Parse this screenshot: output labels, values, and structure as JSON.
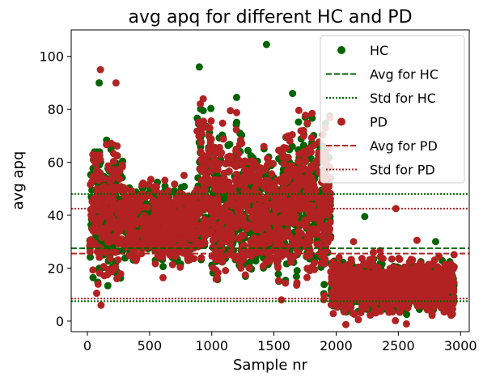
{
  "chart_data": {
    "type": "scatter",
    "title": "avg apq for different HC and PD",
    "xlabel": "Sample nr",
    "ylabel": "avg apq",
    "xlim": [
      -130,
      3070
    ],
    "ylim": [
      -4,
      110
    ],
    "x_ticks": [
      0,
      500,
      1000,
      1500,
      2000,
      2500,
      3000
    ],
    "y_ticks": [
      0,
      20,
      40,
      60,
      80,
      100
    ],
    "grid": false,
    "legend_placement": "top-right",
    "series": [
      {
        "name": "HC",
        "kind": "points",
        "color": "#006400"
      },
      {
        "name": "PD",
        "kind": "points",
        "color": "#b22222"
      }
    ],
    "reference_lines": [
      {
        "name": "Avg for HC",
        "value": 27.5,
        "style": "dashed",
        "color": "#006400"
      },
      {
        "name": "Std for HC",
        "values": [
          48.0,
          7.5
        ],
        "style": "dotted",
        "color": "#006400"
      },
      {
        "name": "Avg for PD",
        "value": 25.5,
        "style": "dashed",
        "color": "#b22222"
      },
      {
        "name": "Std for PD",
        "values": [
          42.5,
          8.5
        ],
        "style": "dotted",
        "color": "#b22222"
      }
    ],
    "segments": [
      {
        "x": [
          20,
          290
        ],
        "range": [
          8,
          75
        ]
      },
      {
        "x": [
          290,
          880
        ],
        "range": [
          18,
          55
        ]
      },
      {
        "x": [
          880,
          1000
        ],
        "range": [
          5,
          95
        ]
      },
      {
        "x": [
          1000,
          1380
        ],
        "range": [
          5,
          80
        ]
      },
      {
        "x": [
          1380,
          1560
        ],
        "range": [
          5,
          75
        ]
      },
      {
        "x": [
          1560,
          1960
        ],
        "range": [
          5,
          85
        ]
      },
      {
        "x": [
          1960,
          2950
        ],
        "range": [
          1,
          25
        ]
      }
    ],
    "highlights": [
      {
        "series": "HC",
        "x": 1440,
        "y": 104.5
      },
      {
        "series": "HC",
        "x": 900,
        "y": 96
      },
      {
        "series": "PD",
        "x": 105,
        "y": 95
      },
      {
        "series": "HC",
        "x": 95,
        "y": 90
      },
      {
        "series": "PD",
        "x": 230,
        "y": 90
      },
      {
        "series": "HC",
        "x": 1650,
        "y": 86
      },
      {
        "series": "HC",
        "x": 1200,
        "y": 84.5
      },
      {
        "series": "PD",
        "x": 1150,
        "y": 79.5
      },
      {
        "series": "HC",
        "x": 2230,
        "y": 39.5
      },
      {
        "series": "PD",
        "x": 2480,
        "y": 42.5
      },
      {
        "series": "PD",
        "x": 2140,
        "y": 30
      },
      {
        "series": "PD",
        "x": 2650,
        "y": 30.5
      },
      {
        "series": "HC",
        "x": 2800,
        "y": 30
      },
      {
        "series": "PD",
        "x": 1560,
        "y": 8
      },
      {
        "series": "PD",
        "x": 110,
        "y": 6
      },
      {
        "series": "PD",
        "x": 75,
        "y": 10.5
      }
    ]
  }
}
